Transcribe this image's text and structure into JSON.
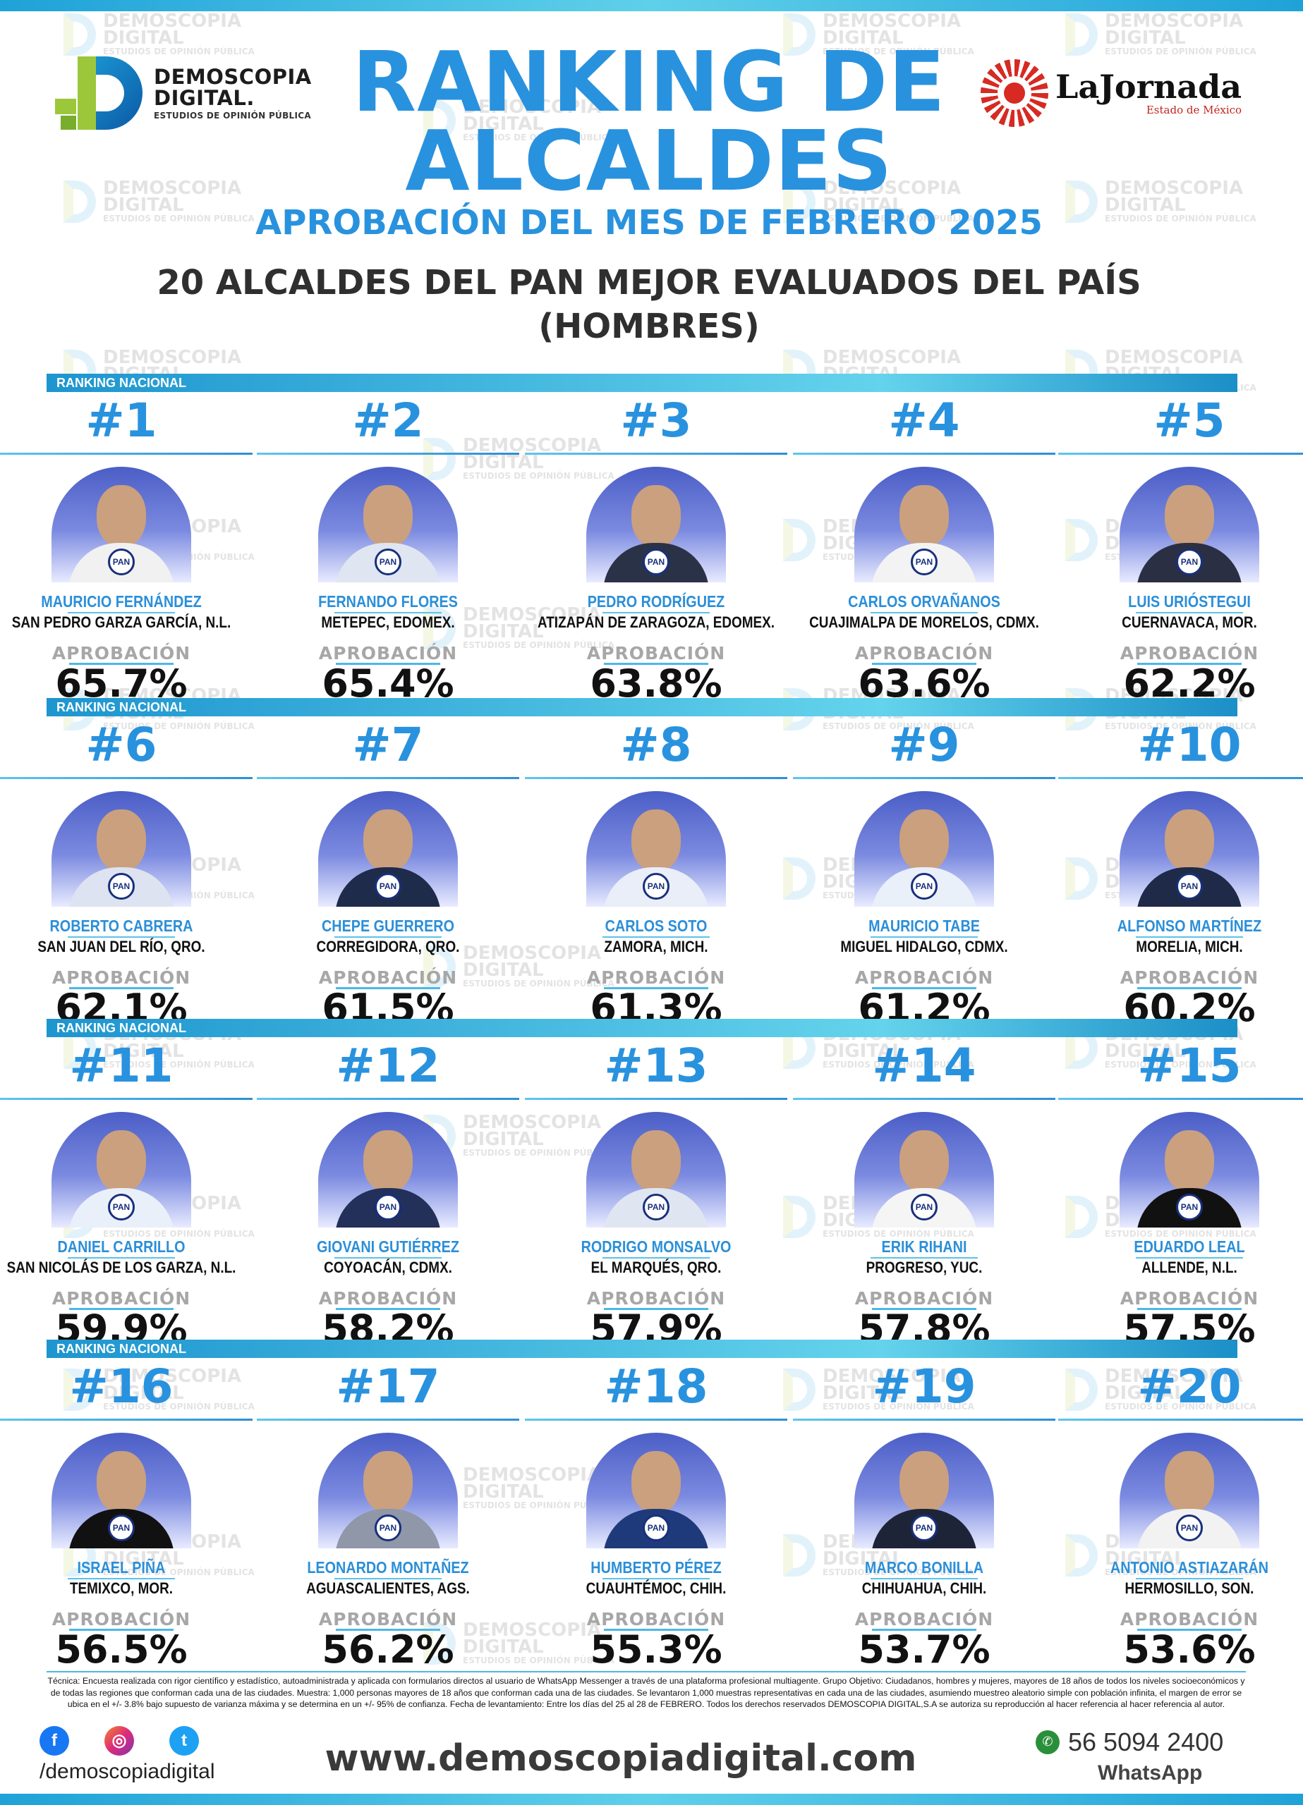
{
  "brand": {
    "name_line1": "DEMOSCOPIA",
    "name_line2": "DIGITAL.",
    "tagline": "ESTUDIOS DE OPINIÓN PÚBLICA"
  },
  "partner": {
    "name": "LaJornada",
    "sub": "Estado de México"
  },
  "header": {
    "title_line1": "RANKING DE",
    "title_line2": "ALCALDES",
    "subtitle": "APROBACIÓN DEL MES DE FEBRERO 2025",
    "heading_line1": "20 ALCALDES DEL PAN MEJOR EVALUADOS DEL PAÍS",
    "heading_line2": "(HOMBRES)"
  },
  "section_label": "RANKING NACIONAL",
  "approval_label": "APROBACIÓN",
  "pan_badge": "PAN",
  "watermark": {
    "line1": "DEMOSCOPIA",
    "line2": "DIGITAL",
    "line3": "ESTUDIOS DE OPINIÓN PÚBLICA"
  },
  "ranking": [
    {
      "rank": "#1",
      "name": "MAURICIO FERNÁNDEZ",
      "city": "SAN PEDRO GARZA GARCÍA, N.L.",
      "approval": "65.7%"
    },
    {
      "rank": "#2",
      "name": "FERNANDO FLORES",
      "city": "METEPEC, EDOMEX.",
      "approval": "65.4%"
    },
    {
      "rank": "#3",
      "name": "PEDRO RODRÍGUEZ",
      "city": "ATIZAPÁN DE ZARAGOZA, EDOMEX.",
      "approval": "63.8%"
    },
    {
      "rank": "#4",
      "name": "CARLOS ORVAÑANOS",
      "city": "CUAJIMALPA DE MORELOS, CDMX.",
      "approval": "63.6%"
    },
    {
      "rank": "#5",
      "name": "LUIS URIÓSTEGUI",
      "city": "CUERNAVACA, MOR.",
      "approval": "62.2%"
    },
    {
      "rank": "#6",
      "name": "ROBERTO CABRERA",
      "city": "SAN JUAN DEL RÍO, QRO.",
      "approval": "62.1%"
    },
    {
      "rank": "#7",
      "name": "CHEPE GUERRERO",
      "city": "CORREGIDORA, QRO.",
      "approval": "61.5%"
    },
    {
      "rank": "#8",
      "name": "CARLOS SOTO",
      "city": "ZAMORA, MICH.",
      "approval": "61.3%"
    },
    {
      "rank": "#9",
      "name": "MAURICIO TABE",
      "city": "MIGUEL HIDALGO, CDMX.",
      "approval": "61.2%"
    },
    {
      "rank": "#10",
      "name": "ALFONSO MARTÍNEZ",
      "city": "MORELIA, MICH.",
      "approval": "60.2%"
    },
    {
      "rank": "#11",
      "name": "DANIEL CARRILLO",
      "city": "SAN NICOLÁS DE LOS GARZA, N.L.",
      "approval": "59.9%"
    },
    {
      "rank": "#12",
      "name": "GIOVANI GUTIÉRREZ",
      "city": "COYOACÁN, CDMX.",
      "approval": "58.2%"
    },
    {
      "rank": "#13",
      "name": "RODRIGO MONSALVO",
      "city": "EL MARQUÉS, QRO.",
      "approval": "57.9%"
    },
    {
      "rank": "#14",
      "name": "ERIK RIHANI",
      "city": "PROGRESO, YUC.",
      "approval": "57.8%"
    },
    {
      "rank": "#15",
      "name": "EDUARDO LEAL",
      "city": "ALLENDE, N.L.",
      "approval": "57.5%"
    },
    {
      "rank": "#16",
      "name": "ISRAEL PIÑA",
      "city": "TEMIXCO, MOR.",
      "approval": "56.5%"
    },
    {
      "rank": "#17",
      "name": "LEONARDO MONTAÑEZ",
      "city": "AGUASCALIENTES, AGS.",
      "approval": "56.2%"
    },
    {
      "rank": "#18",
      "name": "HUMBERTO PÉREZ",
      "city": "CUAUHTÉMOC, CHIH.",
      "approval": "55.3%"
    },
    {
      "rank": "#19",
      "name": "MARCO BONILLA",
      "city": "CHIHUAHUA, CHIH.",
      "approval": "53.7%"
    },
    {
      "rank": "#20",
      "name": "ANTONIO ASTIAZARÁN",
      "city": "HERMOSILLO, SON.",
      "approval": "53.6%"
    }
  ],
  "colors": {
    "accent": "#2992de",
    "band": "#1d95cf",
    "text": "#111111"
  },
  "footer": {
    "technique": "Técnica: Encuesta realizada con rigor científico y estadístico, autoadministrada y aplicada con formularios directos al usuario de WhatsApp Messenger a través de una plataforma profesional multiagente. Grupo Objetivo: Ciudadanos, hombres y mujeres, mayores de 18 años de todos los niveles socioeconómicos y de todas las regiones que conforman cada una de las ciudades. Muestra: 1,000 personas mayores de 18 años que conforman cada una de las ciudades. Se levantaron 1,000 muestras representativas en cada una de las ciudades, asumiendo muestreo aleatorio simple con población infinita, el margen de error se ubica en el +/- 3.8% bajo supuesto de varianza máxima y se determina en un +/- 95% de confianza. Fecha de levantamiento: Entre los días del 25 al 28 de FEBRERO. Todos los derechos reservados DEMOSCOPIA DIGITAL,S.A se autoriza su reproducción al hacer referencia al hacer referencia al autor.",
    "social_icons": [
      "facebook-icon",
      "instagram-icon",
      "twitter-icon"
    ],
    "handle": "/demoscopiadigital",
    "website": "www.demoscopiadigital.com",
    "phone": "56 5094 2400",
    "whatsapp": "WhatsApp"
  }
}
